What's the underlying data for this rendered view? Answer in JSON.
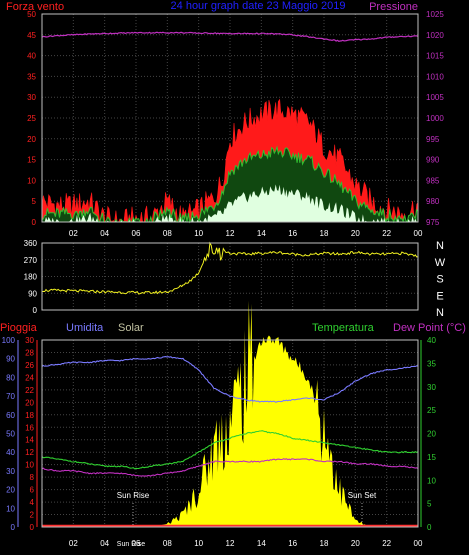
{
  "colors": {
    "background": "#000000",
    "grid": "#444444",
    "frame": "#c0c0c0",
    "wind_avg": "#30c030",
    "wind_gust": "#ff1a1a",
    "wind_min": "#e0ffe0",
    "pressure": "#c030c0",
    "direction": "#f0f020",
    "humidity": "#7a7aff",
    "temperature": "#30d030",
    "dewpoint": "#c030c0",
    "solar": "#ffff00",
    "rain": "#ff3030",
    "label_red": "#ff2020",
    "label_blue": "#2020ff",
    "label_magenta": "#c030c0",
    "label_green": "#30d030",
    "label_solar": "#c0c0a0",
    "label_humid": "#7a7aff",
    "label_white": "#ffffff"
  },
  "chart_data": [
    {
      "type": "line",
      "title": "24 hour graph date 23 Maggio 2019",
      "x_tick_labels": [
        "02",
        "04",
        "06",
        "08",
        "10",
        "12",
        "14",
        "16",
        "18",
        "20",
        "22",
        "00"
      ],
      "ylabel_left": "Forza vento",
      "ylabel_right": "Pressione",
      "ylim_left": [
        0,
        50
      ],
      "yticks_left": [
        "0",
        "5",
        "10",
        "15",
        "20",
        "25",
        "30",
        "35",
        "40",
        "45",
        "50"
      ],
      "ylim_right": [
        975,
        1025
      ],
      "yticks_right": [
        "975",
        "980",
        "985",
        "990",
        "995",
        "1000",
        "1005",
        "1010",
        "1015",
        "1020",
        "1025"
      ],
      "x_hours": [
        0,
        1,
        2,
        3,
        4,
        5,
        6,
        7,
        8,
        9,
        10,
        11,
        11.5,
        12,
        13,
        14,
        15,
        16,
        17,
        18,
        19,
        20,
        21,
        22,
        23,
        24
      ],
      "series": [
        {
          "key": "gust",
          "values": [
            5,
            4,
            4,
            5,
            1,
            0,
            1,
            1,
            5,
            1,
            3,
            6,
            10,
            20,
            24,
            26,
            27,
            26,
            24,
            18,
            15,
            9,
            5,
            3,
            2,
            4
          ]
        },
        {
          "key": "avg",
          "values": [
            2,
            2,
            2,
            3,
            0.5,
            0,
            0.5,
            0.5,
            3,
            0.5,
            2,
            4,
            7,
            12,
            15,
            16,
            17,
            16,
            15,
            12,
            9,
            5,
            3,
            2,
            1,
            2
          ]
        },
        {
          "key": "min",
          "values": [
            0,
            0,
            0,
            1,
            0,
            0,
            0,
            0,
            1,
            0,
            0,
            1,
            2,
            4,
            6,
            7,
            8,
            7,
            6,
            4,
            3,
            1,
            0,
            0,
            0,
            0
          ]
        },
        {
          "key": "pressure",
          "values": [
            1019.5,
            1019.8,
            1020,
            1020.2,
            1020.3,
            1020.4,
            1020.5,
            1020.5,
            1020.5,
            1020.5,
            1020.4,
            1020.4,
            1020.3,
            1020.3,
            1020.3,
            1020.3,
            1020.2,
            1020,
            1019.5,
            1019,
            1018.5,
            1018.8,
            1019,
            1019.4,
            1019.6,
            1019.7
          ]
        }
      ]
    },
    {
      "type": "line",
      "title": "",
      "ylim": [
        0,
        360
      ],
      "yticks": [
        "0",
        "90",
        "180",
        "270",
        "360"
      ],
      "compass_labels": [
        "N",
        "W",
        "S",
        "E",
        "N"
      ],
      "x_hours": [
        0,
        1,
        2,
        3,
        4,
        5,
        6,
        7,
        8,
        8.5,
        9,
        9.5,
        10,
        10.5,
        11,
        11.5,
        12,
        13,
        14,
        15,
        16,
        17,
        18,
        19,
        20,
        21,
        22,
        23,
        24
      ],
      "series": [
        {
          "key": "direction",
          "values": [
            105,
            105,
            103,
            100,
            98,
            95,
            93,
            93,
            98,
            110,
            135,
            160,
            200,
            300,
            330,
            320,
            305,
            300,
            305,
            310,
            300,
            295,
            305,
            300,
            310,
            300,
            300,
            305,
            290
          ]
        }
      ]
    },
    {
      "type": "line",
      "title": "",
      "labels": {
        "rain": "Pioggia",
        "humidity": "Umidita",
        "solar": "Solar",
        "temperature": "Temperatura",
        "dewpoint": "Dew Point (°C)"
      },
      "x_tick_labels": [
        "02",
        "04",
        "06",
        "08",
        "10",
        "12",
        "14",
        "16",
        "18",
        "20",
        "22",
        "00"
      ],
      "ytick_humidity": [
        "0",
        "10",
        "20",
        "30",
        "40",
        "50",
        "60",
        "70",
        "80",
        "90",
        "100"
      ],
      "ytick_rain": [
        "0",
        "2",
        "4",
        "6",
        "8",
        "10",
        "12",
        "14",
        "16",
        "18",
        "20",
        "22",
        "24",
        "26",
        "28",
        "30"
      ],
      "ytick_temp": [
        "0",
        "5",
        "10",
        "15",
        "20",
        "25",
        "30",
        "35",
        "40"
      ],
      "ylim_humidity": [
        0,
        100
      ],
      "ylim_rain": [
        0,
        30
      ],
      "ylim_temp": [
        0,
        40
      ],
      "annotations": {
        "sunrise": "Sun Rise",
        "sunset": "Sun Set",
        "sunrise_tick": "Sun Rise"
      },
      "x_hours": [
        0,
        1,
        2,
        3,
        4,
        5,
        6,
        7,
        8,
        9,
        10,
        11,
        12,
        13,
        14,
        15,
        16,
        17,
        18,
        19,
        20,
        21,
        22,
        23,
        24
      ],
      "series": [
        {
          "key": "humidity",
          "values": [
            86,
            87,
            88,
            88,
            89,
            89,
            90,
            90,
            91,
            90,
            84,
            74,
            70,
            68,
            67,
            67,
            68,
            69,
            68,
            72,
            78,
            82,
            84,
            85,
            86
          ]
        },
        {
          "key": "temperature",
          "values": [
            15,
            14.5,
            14,
            13.5,
            13,
            13,
            12.5,
            13,
            13.5,
            14,
            16,
            18,
            19,
            20,
            20.5,
            20,
            19,
            18.5,
            18,
            17.5,
            17,
            16.5,
            16,
            16,
            16
          ]
        },
        {
          "key": "dewpoint",
          "values": [
            12.5,
            12,
            12,
            11.5,
            11.5,
            11.5,
            11,
            11,
            11.5,
            12,
            13,
            14,
            14,
            14,
            14,
            14.5,
            14.5,
            14.5,
            14,
            14,
            13.5,
            13.5,
            13,
            13,
            12.5
          ]
        },
        {
          "key": "solar",
          "values": [
            0,
            0,
            0,
            0,
            0,
            0,
            0,
            0,
            0.5,
            2,
            6,
            13,
            17,
            24,
            30,
            30,
            27,
            24,
            16,
            6,
            1,
            0,
            0,
            0,
            0
          ]
        },
        {
          "key": "rain",
          "values": [
            0,
            0,
            0,
            0,
            0,
            0,
            0,
            0,
            0,
            0,
            0,
            0,
            0,
            0,
            0,
            0,
            0,
            0,
            0,
            0,
            0,
            0,
            0,
            0,
            0
          ]
        }
      ]
    }
  ]
}
